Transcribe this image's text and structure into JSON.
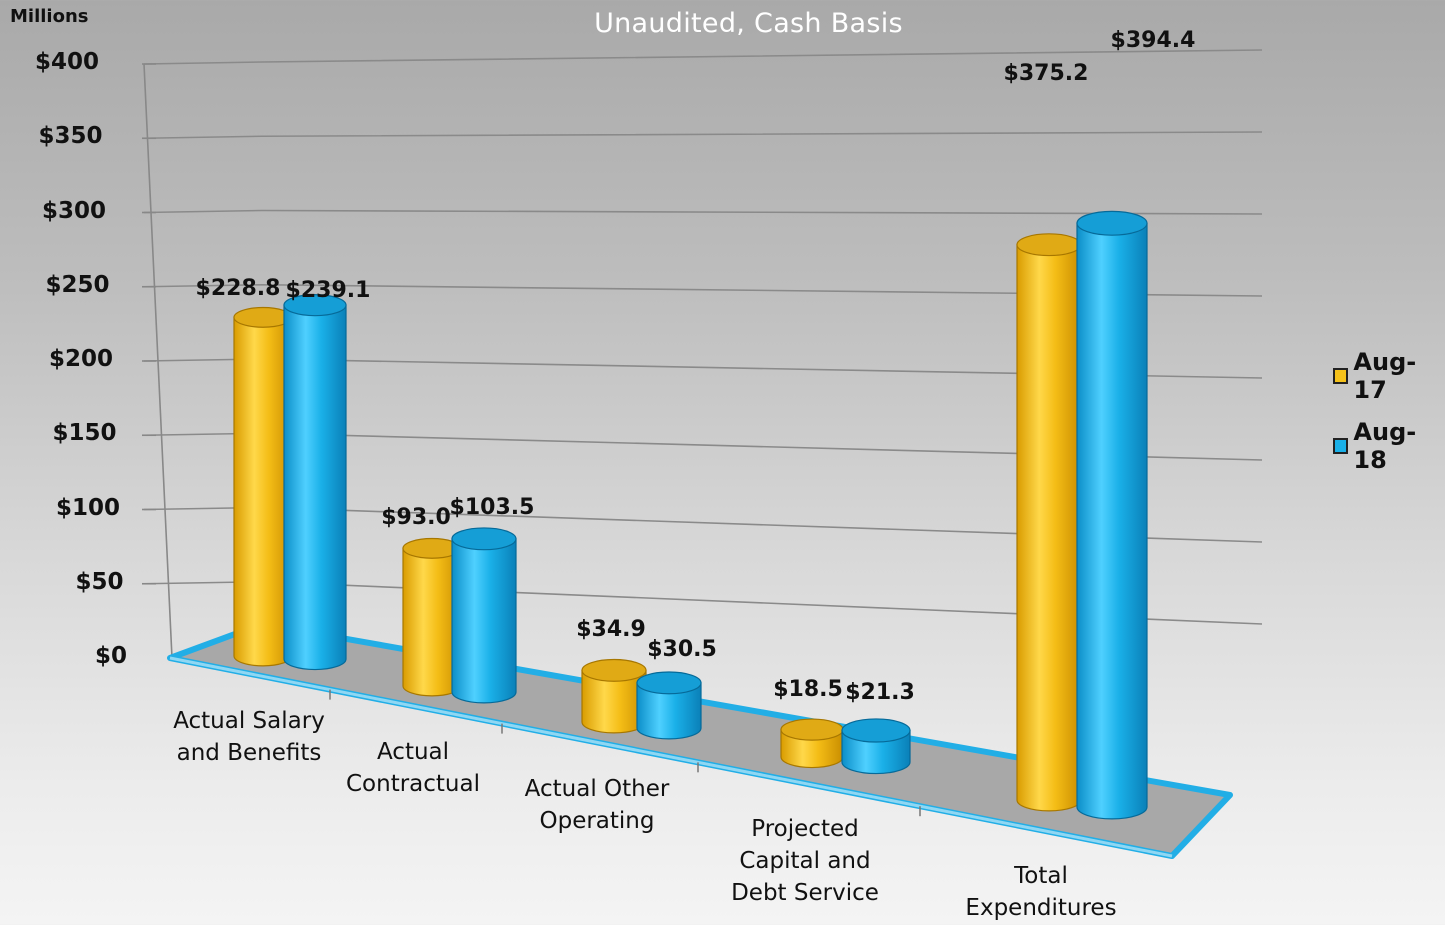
{
  "chart_data": {
    "type": "bar",
    "subtitle": "Unaudited, Cash Basis",
    "unit_label": "Millions",
    "categories": [
      "Actual Salary and Benefits",
      "Actual Contractual",
      "Actual Other Operating",
      "Projected Capital and Debt Service",
      "Total Expenditures"
    ],
    "series": [
      {
        "name": "Aug-17",
        "color": "#f5c21b",
        "values": [
          228.8,
          93.0,
          34.9,
          18.5,
          375.2
        ],
        "labels": [
          "$228.8",
          "$93.0",
          "$34.9",
          "$18.5",
          "$375.2"
        ]
      },
      {
        "name": "Aug-18",
        "color": "#1ab0e8",
        "values": [
          239.1,
          103.5,
          30.5,
          21.3,
          394.4
        ],
        "labels": [
          "$239.1",
          "$103.5",
          "$30.5",
          "$21.3",
          "$394.4"
        ]
      }
    ],
    "y_ticks": [
      "$0",
      "$50",
      "$100",
      "$150",
      "$200",
      "$250",
      "$300",
      "$350",
      "$400"
    ],
    "ylim": [
      0,
      400
    ],
    "grid": true,
    "legend": "right",
    "style": "3d-cylinder"
  }
}
